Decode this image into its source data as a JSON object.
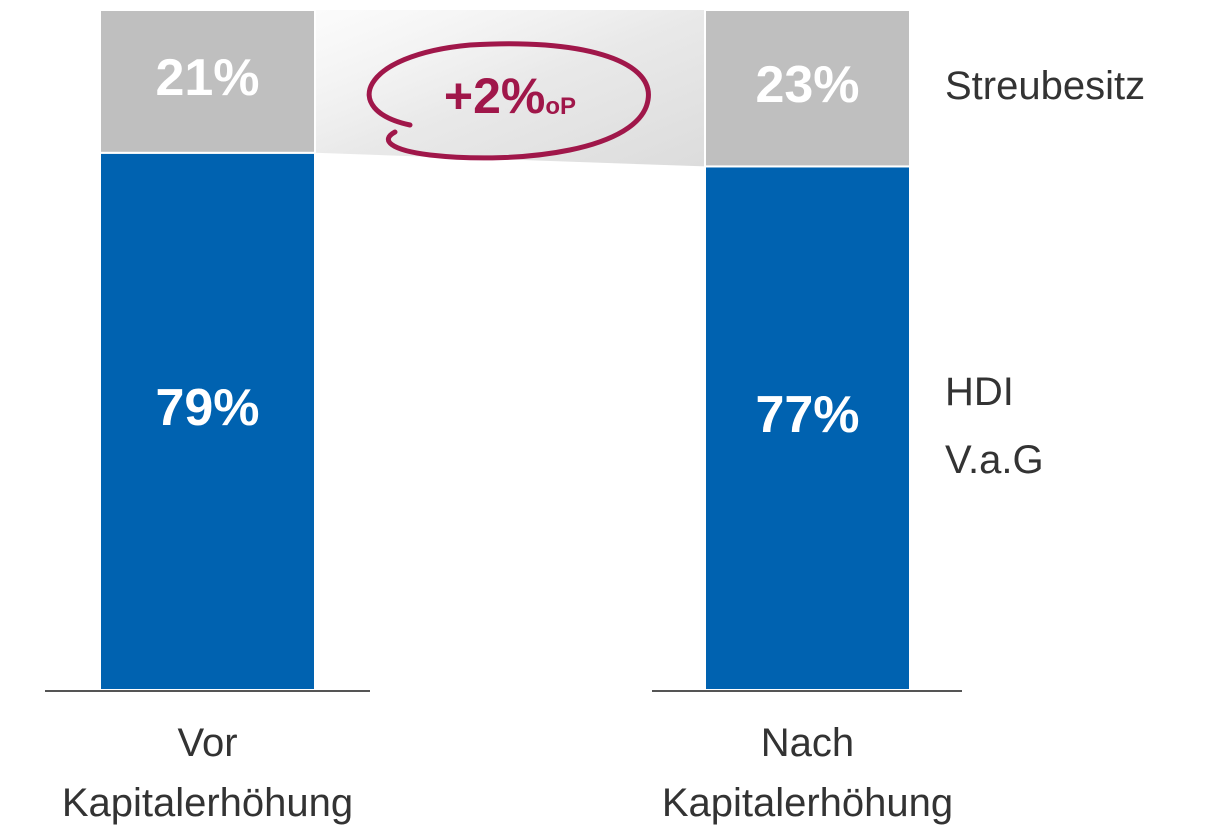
{
  "chart_data": {
    "type": "stacked_bar",
    "categories": [
      "Vor Kapitalerhöhung",
      "Nach Kapitalerhöhung"
    ],
    "series": [
      {
        "name": "HDI V.a.G",
        "color": "#0062b0",
        "values": [
          79,
          77
        ],
        "value_labels": [
          "79%",
          "77%"
        ]
      },
      {
        "name": "Streubesitz",
        "color": "#bfbfbf",
        "values": [
          21,
          23
        ],
        "value_labels": [
          "21%",
          "23%"
        ]
      }
    ],
    "ylim": [
      0,
      100
    ],
    "annotation": [
      "+2%",
      "oP"
    ],
    "annotation_color": "#a0174a"
  }
}
